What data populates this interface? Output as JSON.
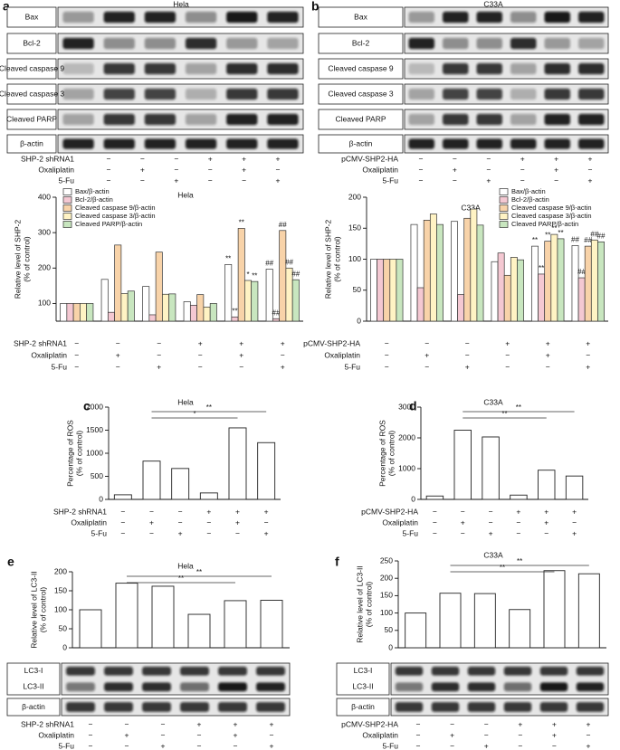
{
  "blots": [
    {
      "panel": "a",
      "title": "Hela",
      "rows": [
        [
          "Bax"
        ],
        [
          "Bcl-2"
        ],
        [
          "Cleaved caspase 9"
        ],
        [
          "Cleaved caspase 3"
        ],
        [
          "Cleaved PARP"
        ],
        [
          "β-actin"
        ]
      ],
      "treatments": [
        {
          "name": "SHP-2 shRNA1",
          "signs": [
            "−",
            "−",
            "−",
            "+",
            "+",
            "+"
          ]
        },
        {
          "name": "Oxaliplatin",
          "signs": [
            "−",
            "+",
            "−",
            "−",
            "+",
            "−"
          ]
        },
        {
          "name": "5-Fu",
          "signs": [
            "−",
            "−",
            "+",
            "−",
            "−",
            "+"
          ]
        }
      ]
    },
    {
      "panel": "b",
      "title": "C33A",
      "rows": [
        [
          "Bax"
        ],
        [
          "Bcl-2"
        ],
        [
          "Cleaved caspase 9"
        ],
        [
          "Cleaved caspase 3"
        ],
        [
          "Cleaved PARP"
        ],
        [
          "β-actin"
        ]
      ],
      "treatments": [
        {
          "name": "pCMV-SHP2-HA",
          "signs": [
            "−",
            "−",
            "−",
            "+",
            "+",
            "+"
          ]
        },
        {
          "name": "Oxaliplatin",
          "signs": [
            "−",
            "+",
            "−",
            "−",
            "+",
            "−"
          ]
        },
        {
          "name": "5-Fu",
          "signs": [
            "−",
            "−",
            "+",
            "−",
            "−",
            "+"
          ]
        }
      ]
    },
    {
      "rows": [
        [
          "LC3-I",
          "LC3-II"
        ],
        [
          "β-actin"
        ]
      ],
      "treatments": [
        {
          "name": "SHP-2 shRNA1",
          "signs": [
            "−",
            "−",
            "−",
            "+",
            "+",
            "+"
          ]
        },
        {
          "name": "Oxaliplatin",
          "signs": [
            "−",
            "+",
            "−",
            "−",
            "+",
            "−"
          ]
        },
        {
          "name": "5-Fu",
          "signs": [
            "−",
            "−",
            "+",
            "−",
            "−",
            "+"
          ]
        }
      ]
    },
    {
      "rows": [
        [
          "LC3-I",
          "LC3-II"
        ],
        [
          "β-actin"
        ]
      ],
      "treatments": [
        {
          "name": "pCMV-SHP2-HA",
          "signs": [
            "−",
            "−",
            "−",
            "+",
            "+",
            "+"
          ]
        },
        {
          "name": "Oxaliplatin",
          "signs": [
            "−",
            "+",
            "−",
            "−",
            "+",
            "−"
          ]
        },
        {
          "name": "5-Fu",
          "signs": [
            "−",
            "−",
            "+",
            "−",
            "−",
            "+"
          ]
        }
      ]
    }
  ],
  "chart_data": [
    {
      "type": "grouped-bar",
      "title": "Hela",
      "ylabel": [
        "Relative level of SHP-2",
        "(% of control)"
      ],
      "ylim": [
        50,
        400
      ],
      "yticks": [
        100,
        200,
        300,
        400
      ],
      "legend": "top-left",
      "series": [
        {
          "name": "Bax/β-actin",
          "color": "#ffffff",
          "values": [
            100,
            168,
            148,
            105,
            210,
            197
          ],
          "significance": [
            null,
            null,
            null,
            null,
            "**",
            "##"
          ]
        },
        {
          "name": "Bcl-2/β-actin",
          "color": "#f4c8d2",
          "values": [
            100,
            75,
            68,
            95,
            62,
            57
          ],
          "significance": [
            null,
            null,
            null,
            null,
            "**",
            "##"
          ]
        },
        {
          "name": "Cleaved caspase 9/β-actin",
          "color": "#f8d3a9",
          "values": [
            100,
            265,
            245,
            125,
            312,
            306
          ],
          "significance": [
            null,
            null,
            null,
            null,
            "**",
            "##"
          ]
        },
        {
          "name": "Cleaved caspase 3/β-actin",
          "color": "#fff3c4",
          "values": [
            100,
            128,
            126,
            90,
            165,
            200
          ],
          "significance": [
            null,
            null,
            null,
            null,
            "*",
            "##"
          ]
        },
        {
          "name": "Cleaved PARP/β-actin",
          "color": "#c8e6bf",
          "values": [
            100,
            135,
            127,
            100,
            162,
            167
          ],
          "significance": [
            null,
            null,
            null,
            null,
            "**",
            "##"
          ]
        }
      ],
      "treatments": [
        {
          "name": "SHP-2 shRNA1",
          "signs": [
            "−",
            "−",
            "−",
            "+",
            "+",
            "+"
          ]
        },
        {
          "name": "Oxaliplatin",
          "signs": [
            "−",
            "+",
            "−",
            "−",
            "+",
            "−"
          ]
        },
        {
          "name": "5-Fu",
          "signs": [
            "−",
            "−",
            "+",
            "−",
            "−",
            "+"
          ]
        }
      ]
    },
    {
      "type": "grouped-bar",
      "title": "C33A",
      "ylabel": [
        "Relative level of SHP-2",
        "(% of control)"
      ],
      "ylim": [
        0,
        200
      ],
      "yticks": [
        0,
        50,
        100,
        150,
        200
      ],
      "legend": "top-right",
      "series": [
        {
          "name": "Bax/β-actin",
          "color": "#ffffff",
          "values": [
            100,
            156,
            161,
            96,
            121,
            122
          ],
          "significance": [
            null,
            null,
            null,
            null,
            "**",
            "##"
          ]
        },
        {
          "name": "Bcl-2/β-actin",
          "color": "#f4c8d2",
          "values": [
            100,
            54,
            43,
            110,
            76,
            70
          ],
          "significance": [
            null,
            null,
            null,
            null,
            "**",
            "##"
          ]
        },
        {
          "name": "Cleaved caspase 9/β-actin",
          "color": "#f8d3a9",
          "values": [
            100,
            163,
            166,
            74,
            129,
            121
          ],
          "significance": [
            null,
            null,
            null,
            null,
            "**",
            "##"
          ]
        },
        {
          "name": "Cleaved caspase 3/β-actin",
          "color": "#fff3c4",
          "values": [
            100,
            173,
            181,
            103,
            140,
            131
          ],
          "significance": [
            null,
            null,
            null,
            null,
            "**",
            "##"
          ]
        },
        {
          "name": "Cleaved PARP/β-actin",
          "color": "#c8e6bf",
          "values": [
            100,
            156,
            155,
            99,
            133,
            128
          ],
          "significance": [
            null,
            null,
            null,
            null,
            "**",
            "##"
          ]
        }
      ],
      "treatments": [
        {
          "name": "pCMV-SHP2-HA",
          "signs": [
            "−",
            "−",
            "−",
            "+",
            "+",
            "+"
          ]
        },
        {
          "name": "Oxaliplatin",
          "signs": [
            "−",
            "+",
            "−",
            "−",
            "+",
            "−"
          ]
        },
        {
          "name": "5-Fu",
          "signs": [
            "−",
            "−",
            "+",
            "−",
            "−",
            "+"
          ]
        }
      ]
    },
    {
      "type": "bar",
      "panel": "c",
      "title": "Hela",
      "ylabel": [
        "Percentage of ROS",
        "(% of control)"
      ],
      "ylim": [
        0,
        2000
      ],
      "yticks": [
        0,
        500,
        1000,
        1500,
        2000
      ],
      "color": "#ffffff",
      "values": [
        100,
        830,
        670,
        140,
        1550,
        1230
      ],
      "significance": [
        "*",
        "**"
      ],
      "treatments": [
        {
          "name": "SHP-2 shRNA1",
          "signs": [
            "−",
            "−",
            "−",
            "+",
            "+",
            "+"
          ]
        },
        {
          "name": "Oxaliplatin",
          "signs": [
            "−",
            "+",
            "−",
            "−",
            "+",
            "−"
          ]
        },
        {
          "name": "5-Fu",
          "signs": [
            "−",
            "−",
            "+",
            "−",
            "−",
            "+"
          ]
        }
      ]
    },
    {
      "type": "bar",
      "panel": "d",
      "title": "C33A",
      "ylabel": [
        "Percentage of ROS",
        "(% of control)"
      ],
      "ylim": [
        0,
        3000
      ],
      "yticks": [
        0,
        1000,
        2000,
        3000
      ],
      "color": "#ffffff",
      "values": [
        110,
        2250,
        2030,
        140,
        950,
        760
      ],
      "significance": [
        "**",
        "**"
      ],
      "treatments": [
        {
          "name": "pCMV-SHP2-HA",
          "signs": [
            "−",
            "−",
            "−",
            "+",
            "+",
            "+"
          ]
        },
        {
          "name": "Oxaliplatin",
          "signs": [
            "−",
            "+",
            "−",
            "−",
            "+",
            "−"
          ]
        },
        {
          "name": "5-Fu",
          "signs": [
            "−",
            "−",
            "+",
            "−",
            "−",
            "+"
          ]
        }
      ]
    },
    {
      "type": "bar",
      "panel": "e",
      "title": "Hela",
      "ylabel": [
        "Relative level of LC3-II",
        "(% of control)"
      ],
      "ylim": [
        0,
        200
      ],
      "yticks": [
        0,
        50,
        100,
        150,
        200
      ],
      "color": "#ffffff",
      "values": [
        100,
        170,
        162,
        88,
        124,
        125
      ],
      "significance": [
        "**",
        "**"
      ]
    },
    {
      "type": "bar",
      "panel": "f",
      "title": "C33A",
      "ylabel": [
        "Relative level of LC3-II",
        "(% of control)"
      ],
      "ylim": [
        0,
        250
      ],
      "yticks": [
        0,
        50,
        100,
        150,
        200,
        250
      ],
      "color": "#ffffff",
      "values": [
        100,
        157,
        156,
        110,
        222,
        213
      ],
      "significance": [
        "**",
        "**"
      ]
    }
  ]
}
